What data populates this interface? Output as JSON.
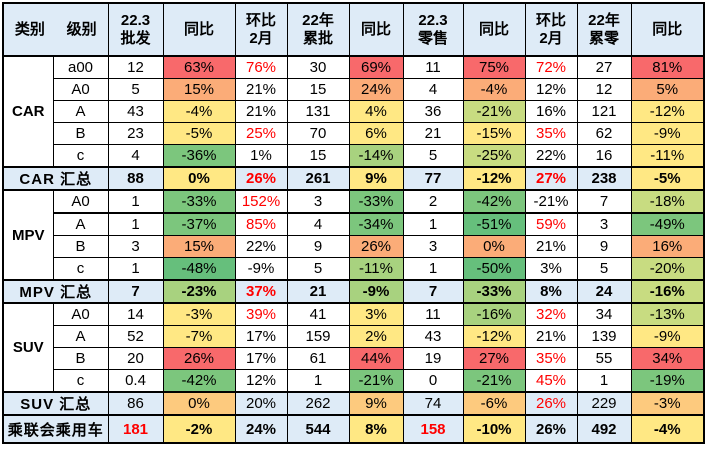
{
  "palette": {
    "header_blue": "#DEEBF7",
    "border": "#000000",
    "red_text": "#FF0000",
    "bg_map": {
      "r": "#F8696B",
      "o": "#FBAC78",
      "oy": "#FDCA7E",
      "y": "#FFE884",
      "yg": "#C8DC81",
      "lg": "#A8D27F",
      "g": "#7CC67D",
      "dg": "#66BF7C"
    }
  },
  "chart_data": {
    "type": "table",
    "header": {
      "category_label": "类别",
      "level_label": "级别",
      "columns": [
        {
          "lines": [
            "22.3",
            "批发"
          ]
        },
        {
          "lines": [
            "同比"
          ]
        },
        {
          "lines": [
            "环比",
            "2月"
          ]
        },
        {
          "lines": [
            "22年",
            "累批"
          ]
        },
        {
          "lines": [
            "同比"
          ]
        },
        {
          "lines": [
            "22.3",
            "零售"
          ]
        },
        {
          "lines": [
            "同比"
          ]
        },
        {
          "lines": [
            "环比",
            "2月"
          ]
        },
        {
          "lines": [
            "22年",
            "累零"
          ]
        },
        {
          "lines": [
            "同比"
          ]
        }
      ]
    },
    "rows": [
      {
        "type": "data",
        "group": "CAR",
        "group_span": 5,
        "level": "a00",
        "cells": [
          {
            "v": "12"
          },
          {
            "v": "63%",
            "bg": "r"
          },
          {
            "v": "76%",
            "fg": "red"
          },
          {
            "v": "30"
          },
          {
            "v": "69%",
            "bg": "r"
          },
          {
            "v": "11"
          },
          {
            "v": "75%",
            "bg": "r"
          },
          {
            "v": "72%",
            "fg": "red"
          },
          {
            "v": "27"
          },
          {
            "v": "81%",
            "bg": "r"
          }
        ]
      },
      {
        "type": "data",
        "level": "A0",
        "cells": [
          {
            "v": "5"
          },
          {
            "v": "15%",
            "bg": "o"
          },
          {
            "v": "21%"
          },
          {
            "v": "15"
          },
          {
            "v": "24%",
            "bg": "o"
          },
          {
            "v": "4"
          },
          {
            "v": "-4%",
            "bg": "o"
          },
          {
            "v": "12%"
          },
          {
            "v": "12"
          },
          {
            "v": "5%",
            "bg": "o"
          }
        ]
      },
      {
        "type": "data",
        "level": "A",
        "cells": [
          {
            "v": "43"
          },
          {
            "v": "-4%",
            "bg": "y"
          },
          {
            "v": "21%"
          },
          {
            "v": "131"
          },
          {
            "v": "4%",
            "bg": "y"
          },
          {
            "v": "36"
          },
          {
            "v": "-21%",
            "bg": "yg"
          },
          {
            "v": "16%"
          },
          {
            "v": "121"
          },
          {
            "v": "-12%",
            "bg": "y"
          }
        ]
      },
      {
        "type": "data",
        "level": "B",
        "cells": [
          {
            "v": "23"
          },
          {
            "v": "-5%",
            "bg": "y"
          },
          {
            "v": "25%",
            "fg": "red"
          },
          {
            "v": "70"
          },
          {
            "v": "6%",
            "bg": "y"
          },
          {
            "v": "21"
          },
          {
            "v": "-15%",
            "bg": "y"
          },
          {
            "v": "35%",
            "fg": "red"
          },
          {
            "v": "62"
          },
          {
            "v": "-9%",
            "bg": "y"
          }
        ]
      },
      {
        "type": "data",
        "level": "c",
        "cells": [
          {
            "v": "4"
          },
          {
            "v": "-36%",
            "bg": "g"
          },
          {
            "v": "1%"
          },
          {
            "v": "15"
          },
          {
            "v": "-14%",
            "bg": "lg"
          },
          {
            "v": "5"
          },
          {
            "v": "-25%",
            "bg": "yg"
          },
          {
            "v": "22%"
          },
          {
            "v": "16"
          },
          {
            "v": "-11%",
            "bg": "y"
          }
        ]
      },
      {
        "type": "summary",
        "label": "CAR 汇总",
        "bold": true,
        "cells": [
          {
            "v": "88"
          },
          {
            "v": "0%",
            "bg": "y"
          },
          {
            "v": "26%",
            "fg": "red"
          },
          {
            "v": "261"
          },
          {
            "v": "9%",
            "bg": "y"
          },
          {
            "v": "77"
          },
          {
            "v": "-12%",
            "bg": "y"
          },
          {
            "v": "27%",
            "fg": "red"
          },
          {
            "v": "238"
          },
          {
            "v": "-5%",
            "bg": "y"
          }
        ]
      },
      {
        "type": "data",
        "group": "MPV",
        "group_span": 4,
        "level": "A0",
        "thick_bottom": true,
        "cells": [
          {
            "v": "1"
          },
          {
            "v": "-33%",
            "bg": "g"
          },
          {
            "v": "152%",
            "fg": "red"
          },
          {
            "v": "3"
          },
          {
            "v": "-33%",
            "bg": "g"
          },
          {
            "v": "2"
          },
          {
            "v": "-42%",
            "bg": "g"
          },
          {
            "v": "-21%"
          },
          {
            "v": "7"
          },
          {
            "v": "-18%",
            "bg": "yg"
          }
        ]
      },
      {
        "type": "data",
        "level": "A",
        "cells": [
          {
            "v": "1"
          },
          {
            "v": "-37%",
            "bg": "g"
          },
          {
            "v": "85%",
            "fg": "red"
          },
          {
            "v": "4"
          },
          {
            "v": "-34%",
            "bg": "g"
          },
          {
            "v": "1"
          },
          {
            "v": "-51%",
            "bg": "dg"
          },
          {
            "v": "59%",
            "fg": "red"
          },
          {
            "v": "3"
          },
          {
            "v": "-49%",
            "bg": "g"
          }
        ]
      },
      {
        "type": "data",
        "level": "B",
        "cells": [
          {
            "v": "3"
          },
          {
            "v": "15%",
            "bg": "o"
          },
          {
            "v": "22%"
          },
          {
            "v": "9"
          },
          {
            "v": "26%",
            "bg": "o"
          },
          {
            "v": "3"
          },
          {
            "v": "0%",
            "bg": "o"
          },
          {
            "v": "21%"
          },
          {
            "v": "9"
          },
          {
            "v": "16%",
            "bg": "o"
          }
        ]
      },
      {
        "type": "data",
        "level": "c",
        "cells": [
          {
            "v": "1"
          },
          {
            "v": "-48%",
            "bg": "dg"
          },
          {
            "v": "-9%"
          },
          {
            "v": "5"
          },
          {
            "v": "-11%",
            "bg": "lg"
          },
          {
            "v": "1"
          },
          {
            "v": "-50%",
            "bg": "dg"
          },
          {
            "v": "3%"
          },
          {
            "v": "5"
          },
          {
            "v": "-20%",
            "bg": "yg"
          }
        ]
      },
      {
        "type": "summary",
        "label": "MPV 汇总",
        "bold": true,
        "cells": [
          {
            "v": "7"
          },
          {
            "v": "-23%",
            "bg": "lg"
          },
          {
            "v": "37%",
            "fg": "red"
          },
          {
            "v": "21"
          },
          {
            "v": "-9%",
            "bg": "lg"
          },
          {
            "v": "7"
          },
          {
            "v": "-33%",
            "bg": "lg"
          },
          {
            "v": "8%"
          },
          {
            "v": "24"
          },
          {
            "v": "-16%",
            "bg": "yg"
          }
        ]
      },
      {
        "type": "data",
        "group": "SUV",
        "group_span": 4,
        "level": "A0",
        "cells": [
          {
            "v": "14"
          },
          {
            "v": "-3%",
            "bg": "y"
          },
          {
            "v": "39%",
            "fg": "red"
          },
          {
            "v": "41"
          },
          {
            "v": "3%",
            "bg": "y"
          },
          {
            "v": "11"
          },
          {
            "v": "-16%",
            "bg": "lg"
          },
          {
            "v": "32%",
            "fg": "red"
          },
          {
            "v": "34"
          },
          {
            "v": "-13%",
            "bg": "yg"
          }
        ]
      },
      {
        "type": "data",
        "level": "A",
        "cells": [
          {
            "v": "52"
          },
          {
            "v": "-7%",
            "bg": "y"
          },
          {
            "v": "17%"
          },
          {
            "v": "159"
          },
          {
            "v": "2%",
            "bg": "y"
          },
          {
            "v": "43"
          },
          {
            "v": "-12%",
            "bg": "y"
          },
          {
            "v": "21%"
          },
          {
            "v": "139"
          },
          {
            "v": "-9%",
            "bg": "y"
          }
        ]
      },
      {
        "type": "data",
        "level": "B",
        "cells": [
          {
            "v": "20"
          },
          {
            "v": "26%",
            "bg": "r"
          },
          {
            "v": "17%"
          },
          {
            "v": "61"
          },
          {
            "v": "44%",
            "bg": "r"
          },
          {
            "v": "19"
          },
          {
            "v": "27%",
            "bg": "r"
          },
          {
            "v": "35%",
            "fg": "red"
          },
          {
            "v": "55"
          },
          {
            "v": "34%",
            "bg": "r"
          }
        ]
      },
      {
        "type": "data",
        "level": "c",
        "cells": [
          {
            "v": "0.4"
          },
          {
            "v": "-42%",
            "bg": "g"
          },
          {
            "v": "12%"
          },
          {
            "v": "1"
          },
          {
            "v": "-21%",
            "bg": "g"
          },
          {
            "v": "0"
          },
          {
            "v": "-21%",
            "bg": "g"
          },
          {
            "v": "45%",
            "fg": "red"
          },
          {
            "v": "1"
          },
          {
            "v": "-19%",
            "bg": "g"
          }
        ]
      },
      {
        "type": "summary",
        "label": "SUV 汇总",
        "bold": false,
        "cells": [
          {
            "v": "86"
          },
          {
            "v": "0%",
            "bg": "oy"
          },
          {
            "v": "20%"
          },
          {
            "v": "262"
          },
          {
            "v": "9%",
            "bg": "oy"
          },
          {
            "v": "74"
          },
          {
            "v": "-6%",
            "bg": "oy"
          },
          {
            "v": "26%",
            "fg": "red"
          },
          {
            "v": "229"
          },
          {
            "v": "-3%",
            "bg": "oy"
          }
        ]
      },
      {
        "type": "total",
        "label": "乘联会乘用车",
        "bold": true,
        "cells": [
          {
            "v": "181",
            "fg": "red"
          },
          {
            "v": "-2%",
            "bg": "y"
          },
          {
            "v": "24%"
          },
          {
            "v": "544"
          },
          {
            "v": "8%",
            "bg": "y"
          },
          {
            "v": "158",
            "fg": "red"
          },
          {
            "v": "-10%",
            "bg": "y"
          },
          {
            "v": "26%"
          },
          {
            "v": "492"
          },
          {
            "v": "-4%",
            "bg": "y"
          }
        ]
      }
    ]
  }
}
